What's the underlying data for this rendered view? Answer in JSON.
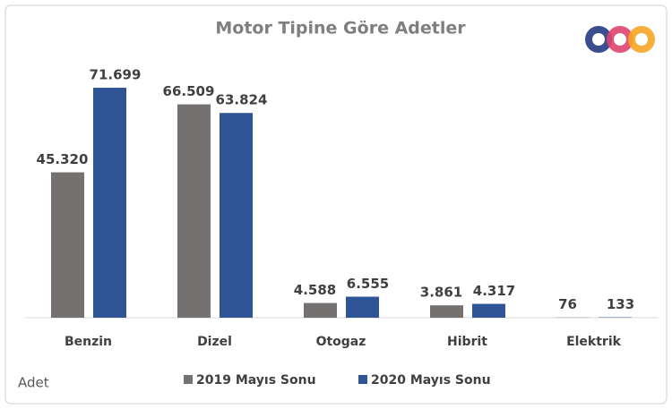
{
  "chart_data": {
    "type": "bar",
    "title": "Motor Tipine Göre Adetler",
    "y_label": "Adet",
    "categories": [
      "Benzin",
      "Dizel",
      "Otogaz",
      "Hibrit",
      "Elektrik"
    ],
    "series": [
      {
        "name": "2019 Mayıs Sonu",
        "color": "#767171",
        "values": [
          45320,
          66509,
          4588,
          3861,
          76
        ],
        "value_labels": [
          "45.320",
          "66.509",
          "4.588",
          "3.861",
          "76"
        ]
      },
      {
        "name": "2020 Mayıs Sonu",
        "color": "#2F5597",
        "values": [
          71699,
          63824,
          6555,
          4317,
          133
        ],
        "value_labels": [
          "71.699",
          "63.824",
          "6.555",
          "4.317",
          "133"
        ]
      }
    ],
    "legend": "bottom"
  }
}
